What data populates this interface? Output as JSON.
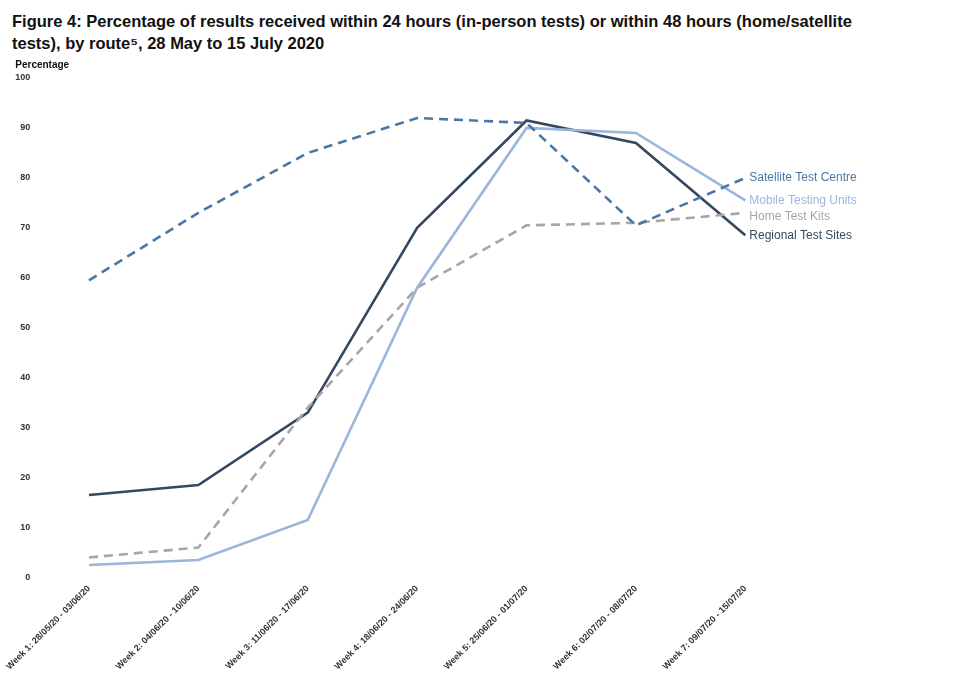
{
  "chart_data": {
    "type": "line",
    "title": "Figure 4: Percentage of results received within 24 hours (in-person tests) or within 48 hours (home/satellite tests), by route⁵, 28 May to 15 July 2020",
    "y_label": "Percentage",
    "categories": [
      "Week 1: 28/05/20 - 03/06/20",
      "Week 2: 04/06/20 - 10/06/20",
      "Week 3: 11/06/20 - 17/06/20",
      "Week 4: 18/06/20 - 24/06/20",
      "Week 5: 25/06/20 - 01/07/20",
      "Week 6: 02/07/20 - 08/07/20",
      "Week 7: 09/07/20 - 15/07/20"
    ],
    "series": [
      {
        "name": "Satellite Test Centre",
        "color": "#4a76a8",
        "line_style": "dashed",
        "values": [
          59.5,
          73,
          85,
          92,
          91,
          70.5,
          80
        ]
      },
      {
        "name": "Mobile Testing Units",
        "color": "#9ab6d9",
        "line_style": "solid",
        "values": [
          2.5,
          3.5,
          11.5,
          58,
          90,
          89,
          75.5
        ]
      },
      {
        "name": "Home Test Kits",
        "color": "#a6a6a6",
        "line_style": "dashed",
        "values": [
          4,
          6,
          34,
          58,
          70.5,
          71,
          73
        ]
      },
      {
        "name": "Regional Test Sites",
        "color": "#34495e",
        "line_style": "solid",
        "values": [
          16.5,
          18.5,
          33,
          70,
          91.5,
          87,
          68.5
        ]
      }
    ],
    "ylim": [
      0,
      100
    ],
    "yticks": [
      0,
      10,
      20,
      30,
      40,
      50,
      60,
      70,
      80,
      90,
      100
    ],
    "grid": false
  }
}
